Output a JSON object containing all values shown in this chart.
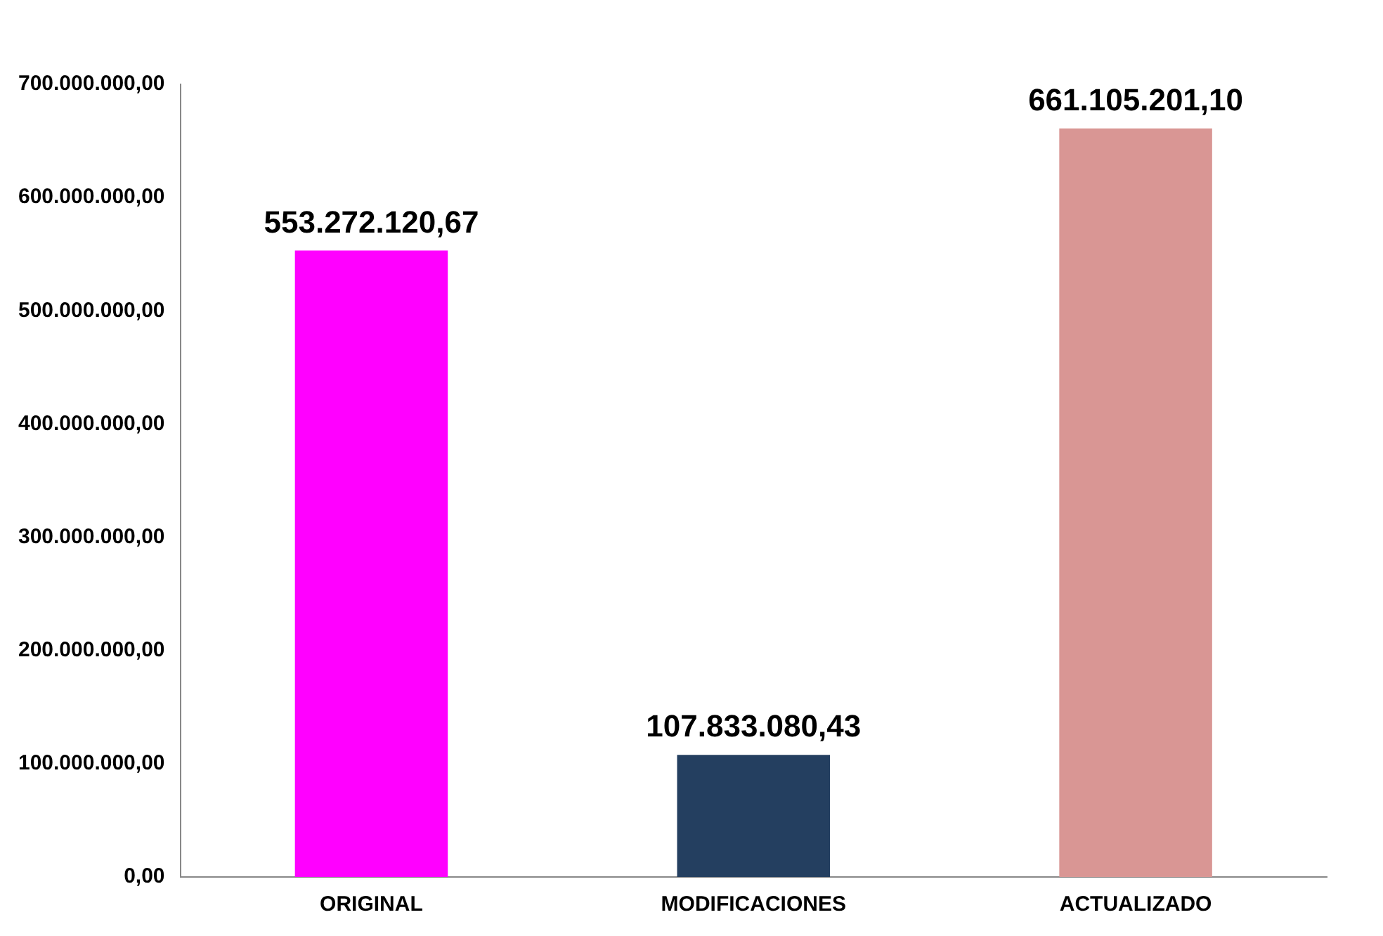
{
  "chart_data": {
    "type": "bar",
    "categories": [
      "ORIGINAL",
      "MODIFICACIONES",
      "ACTUALIZADO"
    ],
    "values": [
      553272120.67,
      107833080.43,
      661105201.1
    ],
    "colors": [
      "#ff00ff",
      "#243f60",
      "#d99694"
    ],
    "value_labels": [
      "553.272.120,67",
      "107.833.080,43",
      "661.105.201,10"
    ],
    "ylim": [
      0,
      700000000
    ],
    "yticks": [
      {
        "value": 0,
        "label": "0,00"
      },
      {
        "value": 100000000,
        "label": "100.000.000,00"
      },
      {
        "value": 200000000,
        "label": "200.000.000,00"
      },
      {
        "value": 300000000,
        "label": "300.000.000,00"
      },
      {
        "value": 400000000,
        "label": "400.000.000,00"
      },
      {
        "value": 500000000,
        "label": "500.000.000,00"
      },
      {
        "value": 600000000,
        "label": "600.000.000,00"
      },
      {
        "value": 700000000,
        "label": "700.000.000,00"
      }
    ],
    "grid": false,
    "legend": false
  }
}
